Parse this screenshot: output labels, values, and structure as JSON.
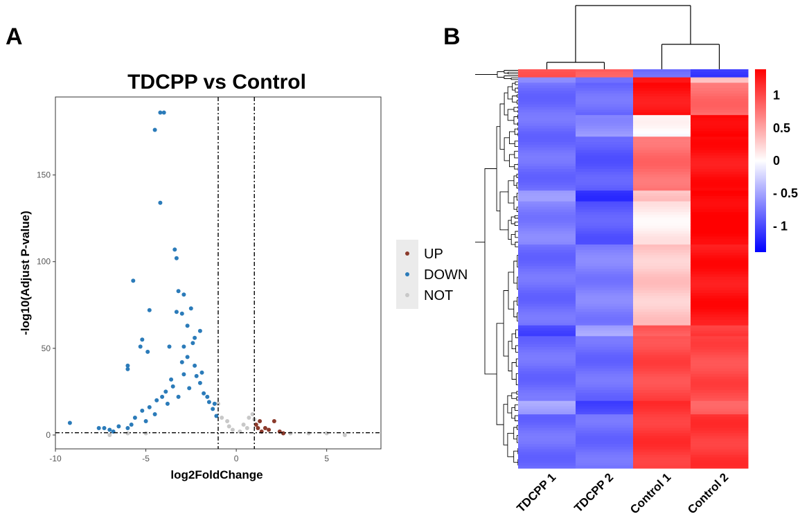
{
  "panels": {
    "a": "A",
    "b": "B"
  },
  "chart_data": [
    {
      "type": "scatter",
      "title": "TDCPP vs Control",
      "xlabel": "log2FoldChange",
      "ylabel": "-log10(Adjust P-value)",
      "xlim": [
        -10,
        8
      ],
      "ylim": [
        -8,
        195
      ],
      "xticks": [
        -10,
        -5,
        0,
        5
      ],
      "yticks": [
        0,
        50,
        100,
        150
      ],
      "vlines": [
        -1,
        1
      ],
      "hline": 1.3,
      "legend": [
        {
          "name": "UP",
          "color": "#8B3A2B"
        },
        {
          "name": "DOWN",
          "color": "#2B7BB9"
        },
        {
          "name": "NOT",
          "color": "#C8C8C8"
        }
      ],
      "series": [
        {
          "name": "DOWN",
          "color": "#2B7BB9",
          "points": [
            [
              -4.2,
              186
            ],
            [
              -4.0,
              186
            ],
            [
              -4.5,
              176
            ],
            [
              -4.2,
              134
            ],
            [
              -3.4,
              107
            ],
            [
              -3.3,
              102
            ],
            [
              -5.7,
              89
            ],
            [
              -3.2,
              83
            ],
            [
              -2.9,
              81
            ],
            [
              -2.5,
              73
            ],
            [
              -4.8,
              72
            ],
            [
              -3.3,
              71
            ],
            [
              -3.0,
              70
            ],
            [
              -2.7,
              63
            ],
            [
              -2.0,
              60
            ],
            [
              -2.3,
              56
            ],
            [
              -2.4,
              53
            ],
            [
              -5.2,
              55
            ],
            [
              -5.3,
              51
            ],
            [
              -3.7,
              51
            ],
            [
              -4.9,
              48
            ],
            [
              -2.9,
              51
            ],
            [
              -6.0,
              40
            ],
            [
              -6.0,
              38
            ],
            [
              -9.2,
              7
            ],
            [
              -7.6,
              4
            ],
            [
              -7.3,
              4
            ],
            [
              -7.0,
              3
            ],
            [
              -6.5,
              5
            ],
            [
              -6.0,
              4
            ],
            [
              -5.6,
              10
            ],
            [
              -5.2,
              14
            ],
            [
              -4.8,
              16
            ],
            [
              -4.5,
              12
            ],
            [
              -4.1,
              22
            ],
            [
              -3.8,
              18
            ],
            [
              -3.5,
              28
            ],
            [
              -3.2,
              22
            ],
            [
              -2.9,
              35
            ],
            [
              -2.6,
              27
            ],
            [
              -2.3,
              40
            ],
            [
              -2.0,
              30
            ],
            [
              -1.8,
              24
            ],
            [
              -1.5,
              19
            ],
            [
              -1.3,
              15
            ],
            [
              -1.1,
              11
            ],
            [
              -4.4,
              20
            ],
            [
              -3.9,
              25
            ],
            [
              -3.6,
              32
            ],
            [
              -3.0,
              42
            ],
            [
              -2.7,
              45
            ],
            [
              -2.2,
              34
            ],
            [
              -1.9,
              36
            ],
            [
              -1.6,
              22
            ],
            [
              -1.2,
              18
            ],
            [
              -5.0,
              8
            ],
            [
              -5.8,
              6
            ],
            [
              -6.8,
              2
            ]
          ]
        },
        {
          "name": "UP",
          "color": "#8B3A2B",
          "points": [
            [
              1.1,
              6
            ],
            [
              1.3,
              8
            ],
            [
              1.6,
              4
            ],
            [
              1.8,
              3
            ],
            [
              2.1,
              8
            ],
            [
              1.4,
              2
            ],
            [
              2.4,
              2
            ],
            [
              2.6,
              1
            ],
            [
              1.2,
              4
            ]
          ]
        },
        {
          "name": "NOT",
          "color": "#C8C8C8",
          "points": [
            [
              -1.0,
              18
            ],
            [
              -0.8,
              10
            ],
            [
              -0.5,
              8
            ],
            [
              0.4,
              6
            ],
            [
              0.6,
              4
            ],
            [
              0.9,
              12
            ],
            [
              0.2,
              2
            ],
            [
              -0.2,
              3
            ],
            [
              3.0,
              1
            ],
            [
              4.0,
              1
            ],
            [
              5.0,
              1
            ],
            [
              6.0,
              0
            ],
            [
              -7.0,
              0
            ],
            [
              -6.0,
              1
            ],
            [
              -5.0,
              1
            ],
            [
              1.0,
              9
            ],
            [
              -0.4,
              5
            ],
            [
              0.7,
              10
            ]
          ]
        }
      ]
    },
    {
      "type": "heatmap",
      "columns": [
        "TDCPP 1",
        "TDCPP 2",
        "Control 1",
        "Control 2"
      ],
      "colorbar": {
        "min": -1.4,
        "max": 1.4,
        "ticks": [
          1,
          0.5,
          0,
          -0.5,
          -1
        ],
        "tick_labels": [
          "1",
          "0.5",
          "0",
          "- 0.5",
          "- 1"
        ],
        "low_color": "#0000FF",
        "mid_color": "#FFFFFF",
        "high_color": "#FF0000"
      },
      "row_groups": [
        {
          "rows": 3,
          "values": [
            0.9,
            0.9,
            -0.8,
            -1.1
          ]
        },
        {
          "rows": 2,
          "values": [
            -0.7,
            -0.7,
            1.2,
            0.4
          ]
        },
        {
          "rows": 12,
          "values": [
            -0.8,
            -0.8,
            1.3,
            0.8
          ]
        },
        {
          "rows": 8,
          "values": [
            -0.8,
            -0.6,
            0.0,
            1.4
          ]
        },
        {
          "rows": 20,
          "values": [
            -0.8,
            -0.9,
            0.8,
            1.3
          ]
        },
        {
          "rows": 4,
          "values": [
            -0.6,
            -1.1,
            0.3,
            1.4
          ]
        },
        {
          "rows": 16,
          "values": [
            -0.7,
            -0.9,
            0.1,
            1.4
          ]
        },
        {
          "rows": 30,
          "values": [
            -0.8,
            -0.7,
            0.3,
            1.3
          ]
        },
        {
          "rows": 4,
          "values": [
            -1.0,
            -0.5,
            0.9,
            1.1
          ]
        },
        {
          "rows": 24,
          "values": [
            -0.8,
            -0.8,
            1.0,
            1.0
          ]
        },
        {
          "rows": 5,
          "values": [
            -0.5,
            -1.0,
            1.1,
            0.9
          ]
        },
        {
          "rows": 20,
          "values": [
            -0.8,
            -0.8,
            1.1,
            1.1
          ]
        }
      ]
    }
  ]
}
